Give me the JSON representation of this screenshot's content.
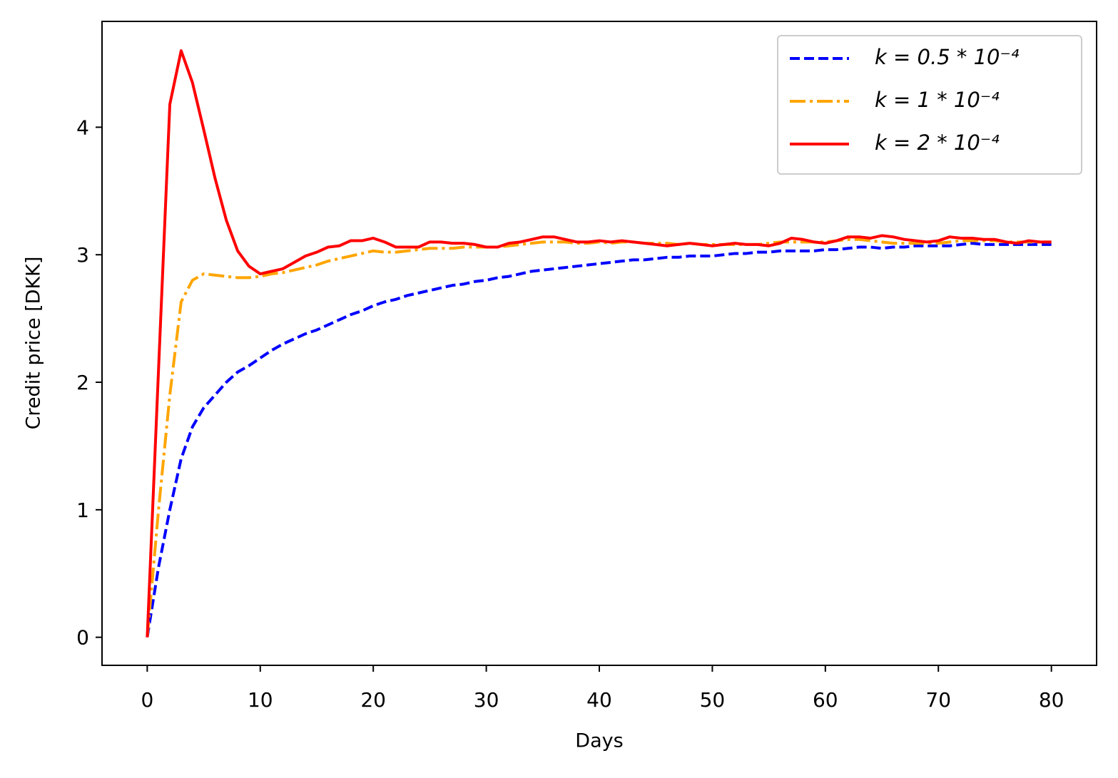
{
  "chart_data": {
    "type": "line",
    "xlabel": "Days",
    "ylabel": "Credit price [DKK]",
    "xlim": [
      -4,
      84
    ],
    "ylim": [
      -0.22,
      4.83
    ],
    "xticks": [
      0,
      10,
      20,
      30,
      40,
      50,
      60,
      70,
      80
    ],
    "yticks": [
      0,
      1,
      2,
      3,
      4
    ],
    "legend": "upper right",
    "x": [
      0,
      1,
      2,
      3,
      4,
      5,
      6,
      7,
      8,
      9,
      10,
      11,
      12,
      13,
      14,
      15,
      16,
      17,
      18,
      19,
      20,
      21,
      22,
      23,
      24,
      25,
      26,
      27,
      28,
      29,
      30,
      31,
      32,
      33,
      34,
      35,
      36,
      37,
      38,
      39,
      40,
      41,
      42,
      43,
      44,
      45,
      46,
      47,
      48,
      49,
      50,
      51,
      52,
      53,
      54,
      55,
      56,
      57,
      58,
      59,
      60,
      61,
      62,
      63,
      64,
      65,
      66,
      67,
      68,
      69,
      70,
      71,
      72,
      73,
      74,
      75,
      76,
      77,
      78,
      79,
      80
    ],
    "series": [
      {
        "name": "k = 0.5 * 10⁻⁴",
        "color": "#0000ff",
        "dash": "dashed",
        "values": [
          0,
          0.55,
          1.0,
          1.4,
          1.65,
          1.8,
          1.9,
          2.0,
          2.08,
          2.13,
          2.19,
          2.25,
          2.3,
          2.34,
          2.38,
          2.41,
          2.45,
          2.49,
          2.53,
          2.56,
          2.6,
          2.63,
          2.65,
          2.68,
          2.7,
          2.72,
          2.74,
          2.76,
          2.77,
          2.79,
          2.8,
          2.82,
          2.83,
          2.85,
          2.87,
          2.88,
          2.89,
          2.9,
          2.91,
          2.92,
          2.93,
          2.94,
          2.95,
          2.96,
          2.96,
          2.97,
          2.98,
          2.98,
          2.99,
          2.99,
          2.99,
          3.0,
          3.01,
          3.01,
          3.02,
          3.02,
          3.03,
          3.03,
          3.03,
          3.03,
          3.04,
          3.04,
          3.05,
          3.06,
          3.06,
          3.05,
          3.06,
          3.06,
          3.07,
          3.07,
          3.07,
          3.07,
          3.08,
          3.09,
          3.08,
          3.08,
          3.08,
          3.08,
          3.08,
          3.08,
          3.08
        ]
      },
      {
        "name": "k = 1 * 10⁻⁴",
        "color": "#ffa500",
        "dash": "dashdot",
        "values": [
          0,
          1.0,
          1.9,
          2.63,
          2.8,
          2.85,
          2.84,
          2.83,
          2.82,
          2.82,
          2.83,
          2.85,
          2.86,
          2.88,
          2.9,
          2.92,
          2.95,
          2.97,
          2.99,
          3.01,
          3.03,
          3.02,
          3.02,
          3.03,
          3.04,
          3.05,
          3.05,
          3.05,
          3.06,
          3.06,
          3.06,
          3.06,
          3.07,
          3.08,
          3.09,
          3.1,
          3.1,
          3.1,
          3.09,
          3.09,
          3.1,
          3.09,
          3.1,
          3.1,
          3.09,
          3.09,
          3.09,
          3.08,
          3.09,
          3.08,
          3.08,
          3.08,
          3.08,
          3.08,
          3.08,
          3.09,
          3.1,
          3.1,
          3.1,
          3.1,
          3.1,
          3.11,
          3.12,
          3.12,
          3.11,
          3.1,
          3.09,
          3.09,
          3.09,
          3.09,
          3.09,
          3.1,
          3.11,
          3.11,
          3.11,
          3.11,
          3.1,
          3.1,
          3.1,
          3.1,
          3.1
        ]
      },
      {
        "name": "k = 2 * 10⁻⁴",
        "color": "#ff0000",
        "dash": "solid",
        "values": [
          0,
          2.1,
          4.18,
          4.6,
          4.35,
          3.98,
          3.6,
          3.27,
          3.03,
          2.91,
          2.85,
          2.87,
          2.89,
          2.94,
          2.99,
          3.02,
          3.06,
          3.07,
          3.11,
          3.11,
          3.13,
          3.1,
          3.06,
          3.06,
          3.06,
          3.1,
          3.1,
          3.09,
          3.09,
          3.08,
          3.06,
          3.06,
          3.09,
          3.1,
          3.12,
          3.14,
          3.14,
          3.12,
          3.1,
          3.1,
          3.11,
          3.1,
          3.11,
          3.1,
          3.09,
          3.08,
          3.07,
          3.08,
          3.09,
          3.08,
          3.07,
          3.08,
          3.09,
          3.08,
          3.08,
          3.07,
          3.09,
          3.13,
          3.12,
          3.1,
          3.09,
          3.11,
          3.14,
          3.14,
          3.13,
          3.15,
          3.14,
          3.12,
          3.11,
          3.1,
          3.11,
          3.14,
          3.13,
          3.13,
          3.12,
          3.12,
          3.1,
          3.09,
          3.11,
          3.1,
          3.1
        ]
      }
    ]
  }
}
